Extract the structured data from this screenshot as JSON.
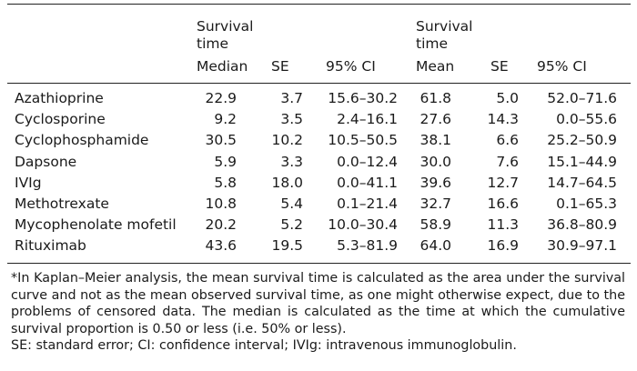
{
  "headers": {
    "survival_time_left": "Survival\ntime",
    "median": "Median",
    "se_left": "SE",
    "ci_left": "95% CI",
    "survival_time_right": "Survival\ntime",
    "mean": "Mean",
    "se_right": "SE",
    "ci_right": "95% CI"
  },
  "rows": [
    {
      "drug": "Azathioprine",
      "median": "22.9",
      "se1": "3.7",
      "ci1": "15.6–30.2",
      "mean": "61.8",
      "se2": "5.0",
      "ci2": "52.0–71.6"
    },
    {
      "drug": "Cyclosporine",
      "median": "9.2",
      "se1": "3.5",
      "ci1": "2.4–16.1",
      "mean": "27.6",
      "se2": "14.3",
      "ci2": "0.0–55.6"
    },
    {
      "drug": "Cyclophosphamide",
      "median": "30.5",
      "se1": "10.2",
      "ci1": "10.5–50.5",
      "mean": "38.1",
      "se2": "6.6",
      "ci2": "25.2–50.9"
    },
    {
      "drug": "Dapsone",
      "median": "5.9",
      "se1": "3.3",
      "ci1": "0.0–12.4",
      "mean": "30.0",
      "se2": "7.6",
      "ci2": "15.1–44.9"
    },
    {
      "drug": "IVIg",
      "median": "5.8",
      "se1": "18.0",
      "ci1": "0.0–41.1",
      "mean": "39.6",
      "se2": "12.7",
      "ci2": "14.7–64.5"
    },
    {
      "drug": "Methotrexate",
      "median": "10.8",
      "se1": "5.4",
      "ci1": "0.1–21.4",
      "mean": "32.7",
      "se2": "16.6",
      "ci2": "0.1–65.3"
    },
    {
      "drug": "Mycophenolate mofetil",
      "median": "20.2",
      "se1": "5.2",
      "ci1": "10.0–30.4",
      "mean": "58.9",
      "se2": "11.3",
      "ci2": "36.8–80.9"
    },
    {
      "drug": "Rituximab",
      "median": "43.6",
      "se1": "19.5",
      "ci1": "5.3–81.9",
      "mean": "64.0",
      "se2": "16.9",
      "ci2": "30.9–97.1"
    }
  ],
  "footnote": {
    "main": "*In Kaplan–Meier analysis, the mean survival time is calculated as the area under the survival curve and not as the mean observed survival time, as one might otherwise expect, due to the problems of censored data. The median is calculated as the time at which the cumulative survival proportion is 0.50 or less (i.e. 50% or less).",
    "abbreviations": "SE: standard error; CI: confidence interval; IVIg: intravenous immunoglobulin."
  }
}
